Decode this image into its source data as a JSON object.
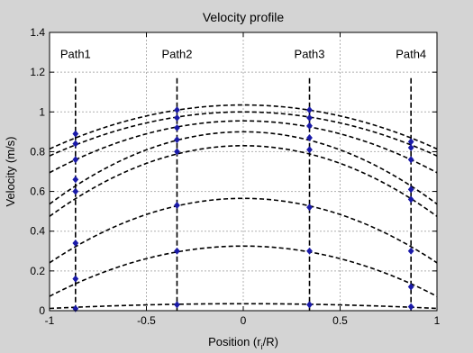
{
  "chart_data": {
    "type": "line",
    "title": "Velocity profile",
    "xlabel": "Position (r",
    "xlabel_sub": "i",
    "xlabel_tail": "/R)",
    "ylabel": "Velocity (m/s)",
    "xlim": [
      -1,
      1
    ],
    "ylim": [
      0,
      1.4
    ],
    "xticks": [
      -1,
      -0.5,
      0,
      0.5,
      1
    ],
    "xtick_labels": [
      "-1",
      "-0.5",
      "0",
      "0.5",
      "1"
    ],
    "yticks": [
      0,
      0.2,
      0.4,
      0.6,
      0.8,
      1,
      1.2,
      1.4
    ],
    "ytick_labels": [
      "0",
      "0.2",
      "0.4",
      "0.6",
      "0.8",
      "1",
      "1.2",
      "1.4"
    ],
    "grid": true,
    "paths": [
      {
        "label": "Path1",
        "x": -0.866
      },
      {
        "label": "Path2",
        "x": -0.342
      },
      {
        "label": "Path3",
        "x": 0.342
      },
      {
        "label": "Path4",
        "x": 0.866
      }
    ],
    "path_line_top": 1.17,
    "series": [
      {
        "peak": 1.035,
        "points": [
          [
            -0.866,
            0.89
          ],
          [
            -0.342,
            1.01
          ],
          [
            0.342,
            1.01
          ],
          [
            0.866,
            0.85
          ]
        ]
      },
      {
        "peak": 1.0,
        "points": [
          [
            -0.866,
            0.84
          ],
          [
            -0.342,
            0.97
          ],
          [
            0.342,
            0.97
          ],
          [
            0.866,
            0.82
          ]
        ]
      },
      {
        "peak": 0.955,
        "points": [
          [
            -0.866,
            0.76
          ],
          [
            -0.342,
            0.92
          ],
          [
            0.342,
            0.93
          ],
          [
            0.866,
            0.76
          ]
        ]
      },
      {
        "peak": 0.9,
        "points": [
          [
            -0.866,
            0.66
          ],
          [
            -0.342,
            0.86
          ],
          [
            0.342,
            0.87
          ],
          [
            0.866,
            0.61
          ]
        ]
      },
      {
        "peak": 0.83,
        "points": [
          [
            -0.866,
            0.6
          ],
          [
            -0.342,
            0.8
          ],
          [
            0.342,
            0.81
          ],
          [
            0.866,
            0.56
          ]
        ]
      },
      {
        "peak": 0.565,
        "points": [
          [
            -0.866,
            0.34
          ],
          [
            -0.342,
            0.53
          ],
          [
            0.342,
            0.52
          ],
          [
            0.866,
            0.3
          ]
        ]
      },
      {
        "peak": 0.325,
        "points": [
          [
            -0.866,
            0.16
          ],
          [
            -0.342,
            0.3
          ],
          [
            0.342,
            0.3
          ],
          [
            0.866,
            0.12
          ]
        ]
      },
      {
        "peak": 0.035,
        "points": [
          [
            -0.866,
            0.01
          ],
          [
            -0.342,
            0.03
          ],
          [
            0.342,
            0.03
          ],
          [
            0.866,
            0.02
          ]
        ]
      }
    ],
    "colors": {
      "figure_background": "#d4d4d4",
      "axes_background": "#ffffff",
      "grid": "#b0b0b0",
      "curve": "#000000",
      "marker": "#1a1aa8"
    }
  }
}
